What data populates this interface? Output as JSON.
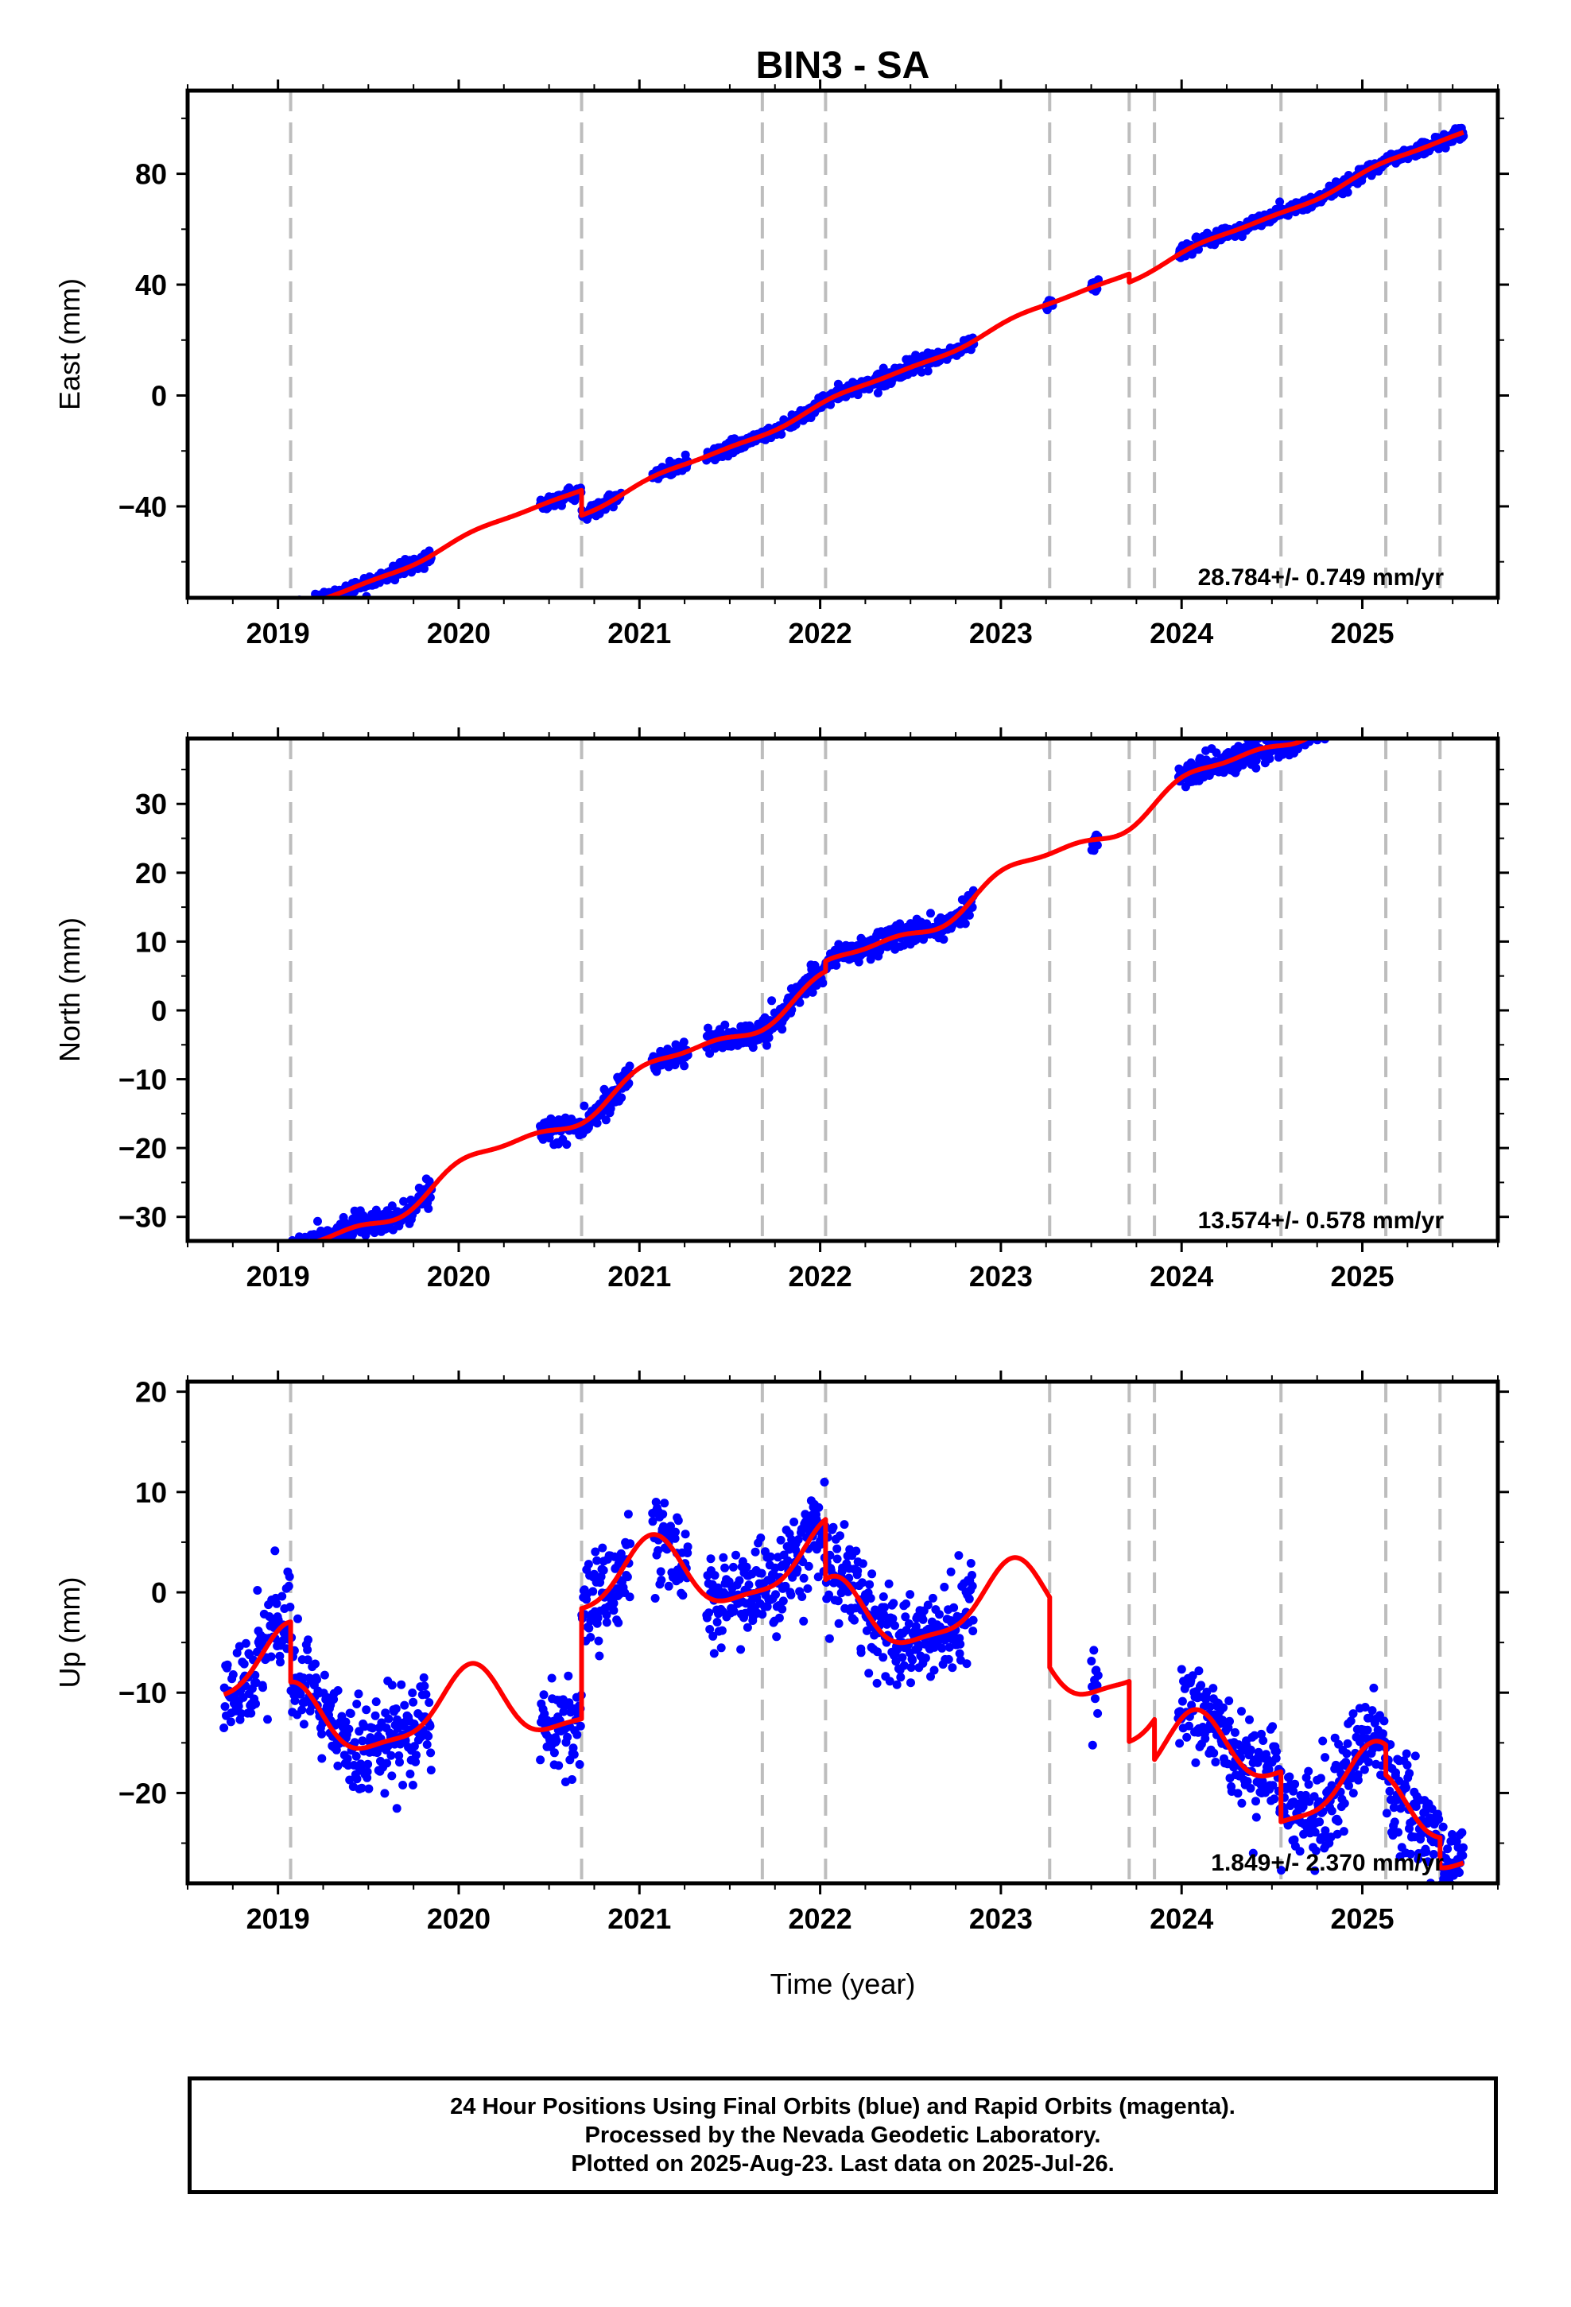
{
  "title": "BIN3 - SA",
  "xlabel": "Time (year)",
  "colors": {
    "points": "#0000ff",
    "model": "#ff0000",
    "event_lines": "#bdbdbd",
    "frame": "#000000"
  },
  "chart_data": [
    {
      "type": "scatter",
      "component": "east",
      "ylabel": "East (mm)",
      "ylim": [
        -73,
        110
      ],
      "yticks": [
        -40,
        0,
        40,
        80
      ],
      "xlim": [
        2018.5,
        2025.75
      ],
      "xticks": [
        2019,
        2020,
        2021,
        2022,
        2023,
        2024,
        2025
      ],
      "xtick_labels": [
        "2019",
        "2020",
        "2021",
        "2022",
        "2023",
        "2024",
        "2025"
      ],
      "velocity_label": "28.784+/- 0.749 mm/yr",
      "event_lines": [
        2019.07,
        2020.68,
        2021.68,
        2022.03,
        2023.27,
        2023.71,
        2023.85,
        2024.55,
        2025.13,
        2025.43
      ],
      "data_ranges": [
        [
          2018.7,
          2019.85
        ],
        [
          2020.45,
          2020.9
        ],
        [
          2021.07,
          2021.27
        ],
        [
          2021.37,
          2022.85
        ],
        [
          2023.25,
          2023.29
        ],
        [
          2023.5,
          2023.54
        ],
        [
          2023.98,
          2025.56
        ]
      ],
      "noise_sd": 1.2,
      "point_count": 1500,
      "model": {
        "rate": 28.784,
        "offset": 5,
        "ref_year": 2022,
        "annual_amp": 1.2,
        "annual_phase": 0.5,
        "semiannual_amp": 0.4,
        "semiannual_phase": 1.0,
        "steps": [
          [
            2019.07,
            0
          ],
          [
            2020.68,
            -9
          ],
          [
            2021.68,
            0
          ],
          [
            2022.03,
            0
          ],
          [
            2023.27,
            0
          ],
          [
            2023.71,
            -3
          ],
          [
            2023.85,
            0
          ],
          [
            2024.55,
            0
          ],
          [
            2025.13,
            0
          ],
          [
            2025.43,
            0
          ]
        ]
      }
    },
    {
      "type": "scatter",
      "component": "north",
      "ylabel": "North (mm)",
      "ylim": [
        -33.5,
        39.5
      ],
      "yticks": [
        -30,
        -20,
        -10,
        0,
        10,
        20,
        30
      ],
      "xlim": [
        2018.5,
        2025.75
      ],
      "xticks": [
        2019,
        2020,
        2021,
        2022,
        2023,
        2024,
        2025
      ],
      "xtick_labels": [
        "2019",
        "2020",
        "2021",
        "2022",
        "2023",
        "2024",
        "2025"
      ],
      "velocity_label": "13.574+/- 0.578 mm/yr",
      "event_lines": [
        2019.07,
        2020.68,
        2021.68,
        2022.03,
        2023.27,
        2023.71,
        2023.85,
        2024.55,
        2025.13,
        2025.43
      ],
      "data_ranges": [
        [
          2018.7,
          2019.85
        ],
        [
          2020.45,
          2020.95
        ],
        [
          2021.07,
          2021.27
        ],
        [
          2021.37,
          2022.85
        ],
        [
          2023.5,
          2023.54
        ],
        [
          2023.98,
          2025.56
        ]
      ],
      "noise_sd": 0.9,
      "point_count": 1500,
      "model": {
        "rate": 13.574,
        "offset": 1.5,
        "ref_year": 2022,
        "annual_amp": 1.6,
        "annual_phase": 0.8,
        "semiannual_amp": 0.6,
        "semiannual_phase": 2.0,
        "steps": [
          [
            2019.07,
            2
          ],
          [
            2020.68,
            0
          ],
          [
            2021.68,
            0
          ],
          [
            2022.03,
            1.5
          ],
          [
            2023.27,
            0
          ],
          [
            2023.71,
            0
          ],
          [
            2023.85,
            0
          ],
          [
            2024.55,
            0
          ],
          [
            2025.13,
            -2
          ],
          [
            2025.43,
            0
          ]
        ]
      }
    },
    {
      "type": "scatter",
      "component": "up",
      "ylabel": "Up (mm)",
      "ylim": [
        -29,
        21
      ],
      "yticks": [
        -20,
        -10,
        0,
        10,
        20
      ],
      "xlim": [
        2018.5,
        2025.75
      ],
      "xticks": [
        2019,
        2020,
        2021,
        2022,
        2023,
        2024,
        2025
      ],
      "xtick_labels": [
        "2019",
        "2020",
        "2021",
        "2022",
        "2023",
        "2024",
        "2025"
      ],
      "velocity_label": "1.849+/- 2.370 mm/yr",
      "event_lines": [
        2019.07,
        2020.68,
        2021.68,
        2022.03,
        2023.27,
        2023.71,
        2023.85,
        2024.55,
        2025.13,
        2025.43
      ],
      "data_ranges": [
        [
          2018.7,
          2019.85
        ],
        [
          2020.45,
          2020.95
        ],
        [
          2021.07,
          2021.27
        ],
        [
          2021.37,
          2022.85
        ],
        [
          2023.5,
          2023.54
        ],
        [
          2023.98,
          2025.56
        ]
      ],
      "noise_sd": 2.3,
      "point_count": 1500,
      "model": {
        "rate": 1.849,
        "offset": -2,
        "ref_year": 2022,
        "annual_amp": 3.5,
        "annual_phase": 1.2,
        "semiannual_amp": 1.0,
        "semiannual_phase": 0.5,
        "steps": [
          [
            2019.07,
            -6
          ],
          [
            2020.68,
            11
          ],
          [
            2021.68,
            0
          ],
          [
            2022.03,
            -6
          ],
          [
            2023.27,
            -7
          ],
          [
            2023.71,
            -6
          ],
          [
            2023.85,
            -4
          ],
          [
            2024.55,
            -5
          ],
          [
            2025.13,
            -3
          ],
          [
            2025.43,
            -3
          ]
        ]
      }
    }
  ],
  "footer": {
    "line1": "24 Hour Positions Using Final Orbits (blue) and Rapid Orbits (magenta).",
    "line2": "Processed by the Nevada Geodetic Laboratory.",
    "line3": "Plotted on 2025-Aug-23. Last data on 2025-Jul-26."
  }
}
